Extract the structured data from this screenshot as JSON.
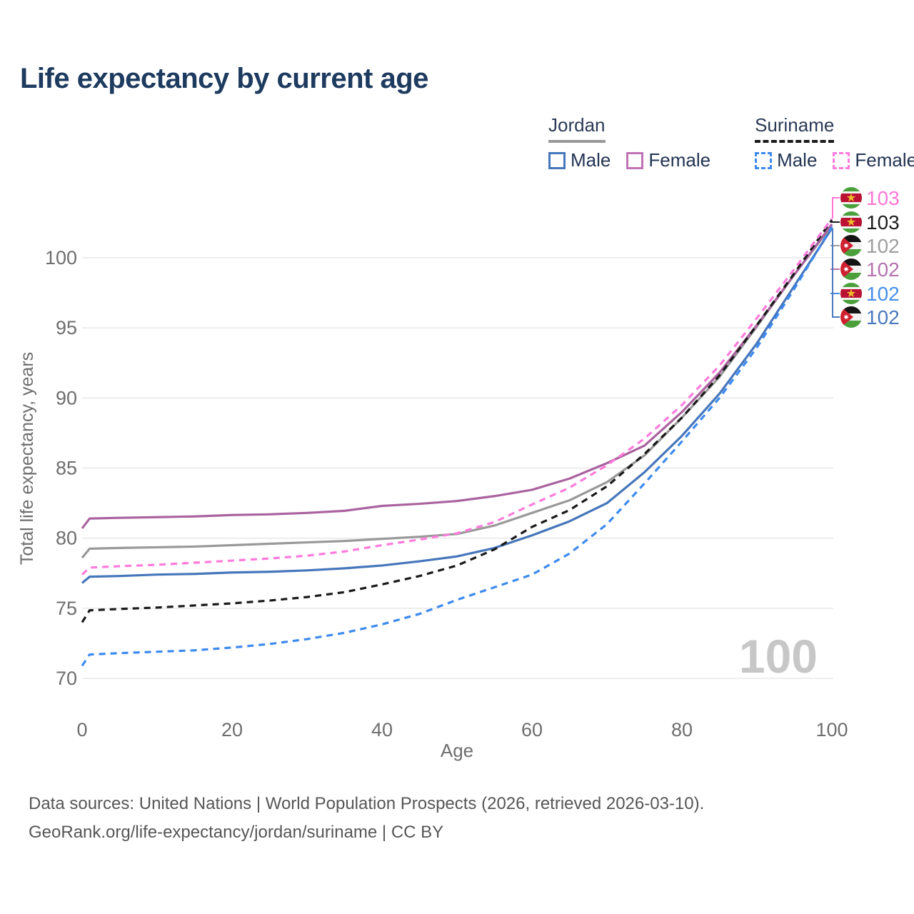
{
  "title": {
    "text": "Life expectancy by current age"
  },
  "legend": {
    "groups": [
      {
        "country": "Jordan",
        "line_style": "solid",
        "underline_color": "#999999",
        "items": [
          {
            "label": "Male",
            "color": "#4676bb",
            "dashed": false
          },
          {
            "label": "Female",
            "color": "#bf72b4",
            "dashed": false
          }
        ]
      },
      {
        "country": "Suriname",
        "line_style": "dashed",
        "underline_color": "#1a1a1a",
        "items": [
          {
            "label": "Male",
            "color": "#3d8af0",
            "dashed": true
          },
          {
            "label": "Female",
            "color": "#ff7bdb",
            "dashed": true
          }
        ]
      }
    ]
  },
  "chart_data": {
    "type": "line",
    "title": "Life expectancy by current age",
    "xlabel": "Age",
    "ylabel": "Total life expectancy, years",
    "xlim": [
      0,
      100
    ],
    "ylim": [
      70,
      103
    ],
    "xticks": [
      0,
      20,
      40,
      60,
      80,
      100
    ],
    "yticks": [
      70,
      75,
      80,
      85,
      90,
      95,
      100
    ],
    "grid": true,
    "age_counter": "100",
    "x": [
      0,
      1,
      5,
      10,
      15,
      20,
      25,
      30,
      35,
      40,
      45,
      50,
      55,
      60,
      65,
      70,
      75,
      80,
      85,
      90,
      95,
      100
    ],
    "series": [
      {
        "name": "Jordan Male",
        "country": "Jordan",
        "sex": "Male",
        "color": "#4676bb",
        "dashed": false,
        "values": [
          76.8,
          77.25,
          77.3,
          77.4,
          77.45,
          77.55,
          77.6,
          77.7,
          77.85,
          78.05,
          78.35,
          78.7,
          79.3,
          80.2,
          81.2,
          82.5,
          84.7,
          87.3,
          90.3,
          93.9,
          98.0,
          102.1
        ]
      },
      {
        "name": "Jordan",
        "country": "Jordan",
        "sex": "Both",
        "color": "#999999",
        "dashed": false,
        "values": [
          78.6,
          79.25,
          79.3,
          79.35,
          79.4,
          79.5,
          79.6,
          79.7,
          79.8,
          79.95,
          80.1,
          80.3,
          80.9,
          81.8,
          82.7,
          84.0,
          85.9,
          88.6,
          91.5,
          95.1,
          98.8,
          102.3
        ]
      },
      {
        "name": "Jordan Female",
        "country": "Jordan",
        "sex": "Female",
        "color": "#aa639f",
        "dashed": false,
        "values": [
          80.7,
          81.4,
          81.45,
          81.5,
          81.55,
          81.65,
          81.7,
          81.8,
          81.95,
          82.3,
          82.45,
          82.65,
          83.0,
          83.45,
          84.25,
          85.35,
          86.6,
          89.0,
          91.8,
          95.2,
          98.8,
          102.4
        ]
      },
      {
        "name": "Suriname Male",
        "country": "Suriname",
        "sex": "Male",
        "color": "#3d8af0",
        "dashed": true,
        "values": [
          70.9,
          71.7,
          71.8,
          71.9,
          72.0,
          72.2,
          72.45,
          72.8,
          73.25,
          73.85,
          74.6,
          75.6,
          76.5,
          77.4,
          78.9,
          81.0,
          83.9,
          86.9,
          90.0,
          93.6,
          97.8,
          102.2
        ]
      },
      {
        "name": "Suriname",
        "country": "Suriname",
        "sex": "Both",
        "color": "#1a1a1a",
        "dashed": true,
        "values": [
          74.0,
          74.85,
          74.95,
          75.05,
          75.2,
          75.35,
          75.55,
          75.8,
          76.15,
          76.7,
          77.3,
          78.05,
          79.2,
          80.8,
          82.0,
          83.7,
          86.0,
          88.6,
          91.6,
          95.2,
          98.9,
          102.7
        ]
      },
      {
        "name": "Suriname Female",
        "country": "Suriname",
        "sex": "Female",
        "color": "#ff7bdb",
        "dashed": true,
        "values": [
          77.4,
          77.9,
          78.0,
          78.1,
          78.25,
          78.4,
          78.55,
          78.75,
          79.05,
          79.5,
          79.9,
          80.35,
          81.15,
          82.4,
          83.6,
          85.2,
          87.1,
          89.5,
          92.3,
          95.7,
          99.2,
          102.8
        ]
      }
    ],
    "end_labels": [
      {
        "value": "103",
        "color": "#ff77d6",
        "flag": "suriname",
        "series_index": 5,
        "leader": "elbow"
      },
      {
        "value": "103",
        "color": "#1c1c1c",
        "flag": "suriname",
        "series_index": 4,
        "leader": "tick"
      },
      {
        "value": "102",
        "color": "#9e9e9e",
        "flag": "jordan",
        "series_index": 1,
        "leader": "tick"
      },
      {
        "value": "102",
        "color": "#b671ad",
        "flag": "jordan",
        "series_index": 2,
        "leader": "tick"
      },
      {
        "value": "102",
        "color": "#478fea",
        "flag": "suriname",
        "series_index": 3,
        "leader": "tick"
      },
      {
        "value": "102",
        "color": "#4b79bd",
        "flag": "jordan",
        "series_index": 0,
        "leader": "elbow"
      }
    ],
    "colors": {
      "grid": "#e8e8e8",
      "axis_text": "#6e6e6e",
      "watermark": "#c7c7c7",
      "flag_suriname": {
        "green": "#4ba03c",
        "white": "#f2f2f2",
        "red": "#bb1133",
        "star": "#edb92e"
      },
      "flag_jordan": {
        "black": "#141414",
        "white": "#f2f2f2",
        "green": "#4ba03c",
        "red": "#cf2030",
        "star": "#ffffff"
      }
    }
  },
  "footer": {
    "line1": "Data sources: United Nations | World Population Prospects (2026, retrieved 2026-03-10).",
    "line2": "GeoRank.org/life-expectancy/jordan/suriname | CC BY"
  }
}
